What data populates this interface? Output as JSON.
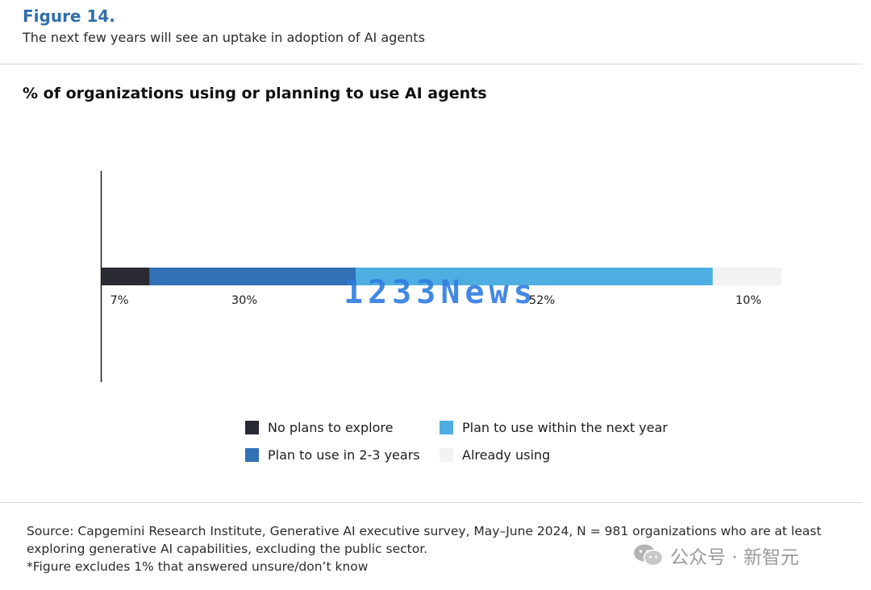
{
  "header": {
    "figure_label": "Figure 14.",
    "subtitle": "The next few years will see an uptake in adoption of AI agents"
  },
  "chart_data": {
    "type": "bar",
    "orientation": "horizontal-stacked",
    "title": "% of organizations using or planning to use AI agents",
    "xlabel": "",
    "ylabel": "",
    "xlim": [
      0,
      99
    ],
    "grid": false,
    "legend_position": "bottom",
    "series": [
      {
        "name": "No plans to explore",
        "value": 7,
        "label": "7%",
        "color": "#2a2a33"
      },
      {
        "name": "Plan to use in 2-3 years",
        "value": 30,
        "label": "30%",
        "color": "#3171b5"
      },
      {
        "name": "Plan to use within the next year",
        "value": 52,
        "label": "52%",
        "color": "#4eaee2"
      },
      {
        "name": "Already using",
        "value": 10,
        "label": "10%",
        "color": "#f2f2f2"
      }
    ]
  },
  "footnote": {
    "line1": "Source: Capgemini Research Institute, Generative AI executive survey, May–June 2024, N = 981 organizations who are at least",
    "line2": "exploring generative AI capabilities, excluding the public sector.",
    "line3": "*Figure excludes 1% that answered unsure/don’t know"
  },
  "watermarks": {
    "center": "1233News",
    "corner": "公众号 · 新智元",
    "corner_icon": "wechat-icon"
  }
}
